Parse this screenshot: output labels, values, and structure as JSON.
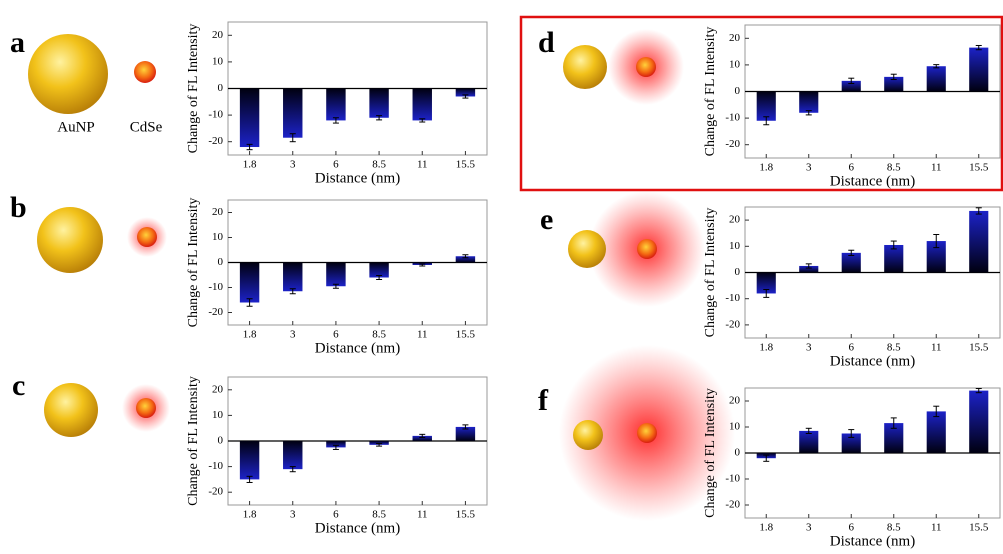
{
  "illustration_labels": [
    "AuNP",
    "CdSe"
  ],
  "chart_data": [
    {
      "type": "bar",
      "panel_label": "a",
      "ylabel": "Change of FL Intensity",
      "xlabel": "Distance (nm)",
      "categories": [
        "1.8",
        "3",
        "6",
        "8.5",
        "11",
        "15.5"
      ],
      "values": [
        -22,
        -18.5,
        -12,
        -11,
        -12,
        -3
      ],
      "errors": [
        1,
        1.5,
        1,
        0.8,
        0.6,
        0.6
      ],
      "color": "#1c22c8",
      "ylim": [
        -25,
        25
      ],
      "yticks": [
        -20,
        -10,
        0,
        10,
        20
      ]
    },
    {
      "type": "bar",
      "panel_label": "b",
      "ylabel": "Change of FL Intensity",
      "xlabel": "Distance (nm)",
      "categories": [
        "1.8",
        "3",
        "6",
        "8.5",
        "11",
        "15.5"
      ],
      "values": [
        -16,
        -11.5,
        -9.5,
        -6,
        -1,
        2.5
      ],
      "errors": [
        1.5,
        1,
        0.8,
        0.8,
        0.4,
        0.6
      ],
      "color": "#1c22c8",
      "ylim": [
        -25,
        25
      ],
      "yticks": [
        -20,
        -10,
        0,
        10,
        20
      ]
    },
    {
      "type": "bar",
      "panel_label": "c",
      "ylabel": "Change of FL Intensity",
      "xlabel": "Distance (nm)",
      "categories": [
        "1.8",
        "3",
        "6",
        "8.5",
        "11",
        "15.5"
      ],
      "values": [
        -15,
        -11,
        -2.5,
        -1.5,
        2,
        5.5
      ],
      "errors": [
        1.2,
        1,
        0.8,
        0.5,
        0.6,
        0.8
      ],
      "color": "#1c22c8",
      "ylim": [
        -25,
        25
      ],
      "yticks": [
        -20,
        -10,
        0,
        10,
        20
      ]
    },
    {
      "type": "bar",
      "panel_label": "d",
      "ylabel": "Change of FL Intensity",
      "xlabel": "Distance (nm)",
      "categories": [
        "1.8",
        "3",
        "6",
        "8.5",
        "11",
        "15.5"
      ],
      "values": [
        -11,
        -8,
        4,
        5.5,
        9.5,
        16.5
      ],
      "errors": [
        1.5,
        0.8,
        1,
        1,
        0.6,
        0.8
      ],
      "color": "#1c22c8",
      "ylim": [
        -25,
        25
      ],
      "yticks": [
        -20,
        -10,
        0,
        10,
        20
      ]
    },
    {
      "type": "bar",
      "panel_label": "e",
      "ylabel": "Change of FL Intensity",
      "xlabel": "Distance (nm)",
      "categories": [
        "1.8",
        "3",
        "6",
        "8.5",
        "11",
        "15.5"
      ],
      "values": [
        -8,
        2.5,
        7.5,
        10.5,
        12,
        23.5
      ],
      "errors": [
        1.5,
        0.8,
        1,
        1.5,
        2.5,
        1.2
      ],
      "color": "#1c22c8",
      "ylim": [
        -25,
        25
      ],
      "yticks": [
        -20,
        -10,
        0,
        10,
        20
      ]
    },
    {
      "type": "bar",
      "panel_label": "f",
      "ylabel": "Change of FL Intensity",
      "xlabel": "Distance (nm)",
      "categories": [
        "1.8",
        "3",
        "6",
        "8.5",
        "11",
        "15.5"
      ],
      "values": [
        -2,
        8.5,
        7.5,
        11.5,
        16,
        24
      ],
      "errors": [
        1.2,
        1,
        1.5,
        2,
        2,
        0.8
      ],
      "color": "#1c22c8",
      "ylim": [
        -25,
        25
      ],
      "yticks": [
        -20,
        -10,
        0,
        10,
        20
      ]
    }
  ]
}
